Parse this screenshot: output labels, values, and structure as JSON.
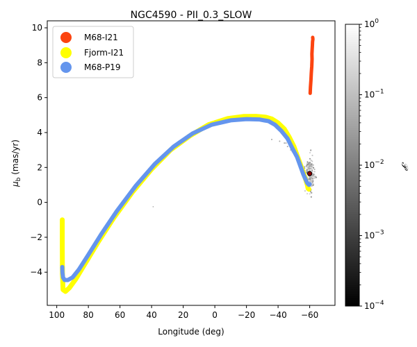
{
  "chart_data": {
    "type": "line",
    "title": "NGC4590 - PII_0.3_SLOW",
    "xlabel": "Longitude (deg)",
    "ylabel_main": "μ",
    "ylabel_sub": "b",
    "ylabel_units": " (mas/yr)",
    "xlim": [
      106,
      -76
    ],
    "ylim": [
      -5.9,
      10.4
    ],
    "xticks": [
      100,
      80,
      60,
      40,
      20,
      0,
      -20,
      -40,
      -60
    ],
    "xtick_labels": [
      "100",
      "80",
      "60",
      "40",
      "20",
      "0",
      "−20",
      "−40",
      "−60"
    ],
    "yticks": [
      -4,
      -2,
      0,
      2,
      4,
      6,
      8,
      10
    ],
    "ytick_labels": [
      "−4",
      "−2",
      "0",
      "2",
      "4",
      "6",
      "8",
      "10"
    ],
    "legend": {
      "placement": "top-left",
      "entries": [
        {
          "name": "M68-I21",
          "color": "#fc4410"
        },
        {
          "name": "Fjorm-I21",
          "color": "#ffff00"
        },
        {
          "name": "M68-P19",
          "color": "#6495ed"
        }
      ]
    },
    "series": [
      {
        "name": "M68-I21",
        "color": "#fc4410",
        "x": [
          -60.3,
          -60.5,
          -60.8,
          -61.0,
          -61.3,
          -61.5,
          -61.4,
          -61.6,
          -61.7,
          -61.8,
          -62.0,
          -61.9
        ],
        "y": [
          6.25,
          6.6,
          7.0,
          7.4,
          7.8,
          8.2,
          8.5,
          8.8,
          9.0,
          9.2,
          9.35,
          9.45
        ]
      },
      {
        "name": "Fjorm-I21",
        "color": "#ffff00",
        "x": [
          96.5,
          96.5,
          96.4,
          96.0,
          94.5,
          92.0,
          88.0,
          82.0,
          74.0,
          64.0,
          52.0,
          40.0,
          28.0,
          16.0,
          4.0,
          -8.0,
          -18.0,
          -26.0,
          -32.0,
          -36.0,
          -40.0,
          -44.0,
          -47.0,
          -50.0,
          -52.0,
          -54.0,
          -56.0,
          -57.5,
          -58.5,
          -59.0,
          -59.5
        ],
        "y": [
          -1.0,
          -2.5,
          -4.0,
          -5.0,
          -5.1,
          -4.9,
          -4.4,
          -3.5,
          -2.3,
          -0.9,
          0.6,
          1.9,
          3.0,
          3.8,
          4.45,
          4.8,
          4.92,
          4.93,
          4.88,
          4.78,
          4.55,
          4.2,
          3.75,
          3.2,
          2.7,
          2.2,
          1.7,
          1.3,
          1.0,
          0.8,
          0.75
        ]
      },
      {
        "name": "M68-P19",
        "color": "#6495ed",
        "x": [
          96.5,
          96.4,
          96.0,
          95.0,
          93.0,
          90.0,
          86.0,
          80.0,
          72.0,
          62.0,
          50.0,
          38.0,
          26.0,
          14.0,
          2.0,
          -10.0,
          -20.0,
          -28.0,
          -34.0,
          -38.0,
          -42.0,
          -46.0,
          -49.0,
          -52.0,
          -54.0,
          -56.0,
          -57.5,
          -58.5,
          -59.5,
          -60.0
        ],
        "y": [
          -3.7,
          -4.0,
          -4.3,
          -4.45,
          -4.45,
          -4.3,
          -3.85,
          -3.0,
          -1.85,
          -0.5,
          0.95,
          2.2,
          3.2,
          3.95,
          4.45,
          4.7,
          4.77,
          4.75,
          4.65,
          4.45,
          4.1,
          3.65,
          3.1,
          2.6,
          2.1,
          1.6,
          1.3,
          1.1,
          1.0,
          1.05
        ]
      }
    ],
    "highlight_point": {
      "x": -60.0,
      "y": 1.65
    },
    "colorbar": {
      "label": "𝒫",
      "scale": "log",
      "range": [
        0.0001,
        1
      ],
      "tick_base": "10",
      "tick_exponents": [
        "−4",
        "−3",
        "−2",
        "−1",
        "0"
      ]
    }
  }
}
